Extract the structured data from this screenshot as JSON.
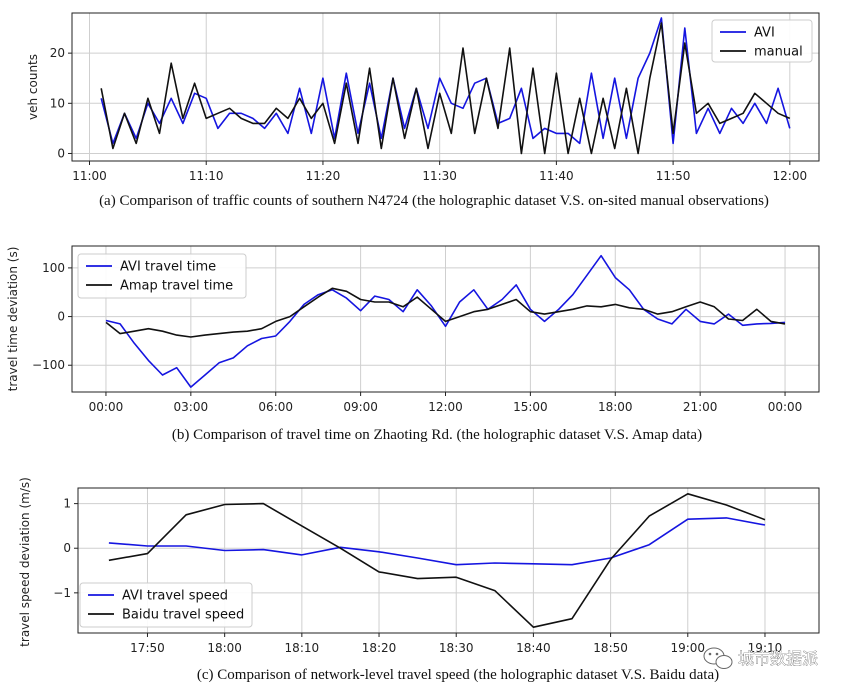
{
  "chart_data": [
    {
      "type": "line",
      "caption": "(a) Comparison of traffic counts of southern N4724 (the holographic dataset V.S. on-sited manual observations)",
      "xlabel": "",
      "ylabel": "veh counts",
      "xticks": [
        "11:00",
        "11:10",
        "11:20",
        "11:30",
        "11:40",
        "11:50",
        "12:00"
      ],
      "xtick_values": [
        0,
        10,
        20,
        30,
        40,
        50,
        60
      ],
      "xlim": [
        -1.5,
        62.5
      ],
      "yticks": [
        0,
        10,
        20
      ],
      "ylim": [
        -1.5,
        28
      ],
      "grid": true,
      "legend_position": "top-right",
      "x": [
        1,
        2,
        3,
        4,
        5,
        6,
        7,
        8,
        9,
        10,
        11,
        12,
        13,
        14,
        15,
        16,
        17,
        18,
        19,
        20,
        21,
        22,
        23,
        24,
        25,
        26,
        27,
        28,
        29,
        30,
        31,
        32,
        33,
        34,
        35,
        36,
        37,
        38,
        39,
        40,
        41,
        42,
        43,
        44,
        45,
        46,
        47,
        48,
        49,
        50,
        51,
        52,
        53,
        54,
        55,
        56,
        57,
        58,
        59,
        60
      ],
      "series": [
        {
          "name": "AVI",
          "color": "#1515e0",
          "values": [
            11,
            2,
            8,
            3,
            10,
            6,
            11,
            6,
            12,
            11,
            5,
            8,
            8,
            7,
            5,
            8,
            4,
            13,
            4,
            15,
            3,
            16,
            4,
            14,
            3,
            15,
            5,
            13,
            5,
            15,
            10,
            9,
            14,
            15,
            6,
            7,
            13,
            3,
            5,
            4,
            4,
            2,
            16,
            3,
            15,
            3,
            15,
            20,
            27,
            2,
            25,
            4,
            9,
            4,
            9,
            6,
            10,
            6,
            13,
            5
          ]
        },
        {
          "name": "manual",
          "color": "#111111",
          "values": [
            13,
            1,
            8,
            2,
            11,
            4,
            18,
            7,
            14,
            7,
            8,
            9,
            7,
            6,
            6,
            9,
            7,
            11,
            7,
            10,
            2,
            14,
            2,
            17,
            1,
            15,
            3,
            13,
            1,
            12,
            4,
            21,
            4,
            15,
            5,
            21,
            0,
            17,
            0,
            16,
            0,
            11,
            0,
            11,
            1,
            13,
            0,
            15,
            26,
            4,
            22,
            8,
            10,
            6,
            7,
            8,
            12,
            10,
            8,
            7
          ]
        }
      ]
    },
    {
      "type": "line",
      "caption": "(b) Comparison of travel time on Zhaoting Rd. (the holographic dataset V.S. Amap data)",
      "xlabel": "",
      "ylabel": "travel time deviation (s)",
      "xticks": [
        "00:00",
        "03:00",
        "06:00",
        "09:00",
        "12:00",
        "15:00",
        "18:00",
        "21:00",
        "00:00"
      ],
      "xtick_values": [
        0,
        3,
        6,
        9,
        12,
        15,
        18,
        21,
        24
      ],
      "xlim": [
        -1.2,
        25.2
      ],
      "yticks": [
        -100,
        0,
        100
      ],
      "ylim": [
        -155,
        145
      ],
      "grid": true,
      "legend_position": "top-left",
      "x": [
        0,
        0.5,
        1,
        1.5,
        2,
        2.5,
        3,
        3.5,
        4,
        4.5,
        5,
        5.5,
        6,
        6.5,
        7,
        7.5,
        8,
        8.5,
        9,
        9.5,
        10,
        10.5,
        11,
        11.5,
        12,
        12.5,
        13,
        13.5,
        14,
        14.5,
        15,
        15.5,
        16,
        16.5,
        17,
        17.5,
        18,
        18.5,
        19,
        19.5,
        20,
        20.5,
        21,
        21.5,
        22,
        22.5,
        23,
        23.5,
        24
      ],
      "series": [
        {
          "name": "AVI travel time",
          "color": "#1515e0",
          "values": [
            -8,
            -15,
            -55,
            -90,
            -120,
            -105,
            -145,
            -120,
            -95,
            -85,
            -60,
            -45,
            -40,
            -10,
            25,
            45,
            55,
            38,
            12,
            42,
            35,
            10,
            55,
            22,
            -20,
            30,
            55,
            15,
            35,
            65,
            15,
            -10,
            15,
            45,
            85,
            125,
            80,
            55,
            15,
            -5,
            -15,
            15,
            -10,
            -15,
            5,
            -18,
            -15,
            -14,
            -12
          ]
        },
        {
          "name": "Amap travel time",
          "color": "#111111",
          "values": [
            -12,
            -35,
            -30,
            -25,
            -30,
            -38,
            -42,
            -38,
            -35,
            -32,
            -30,
            -25,
            -10,
            0,
            20,
            40,
            58,
            52,
            35,
            30,
            30,
            20,
            40,
            15,
            -10,
            0,
            10,
            15,
            25,
            35,
            10,
            5,
            10,
            15,
            22,
            20,
            25,
            18,
            15,
            5,
            10,
            20,
            30,
            20,
            -5,
            -8,
            15,
            -10,
            -15
          ]
        }
      ]
    },
    {
      "type": "line",
      "caption": "(c) Comparison of network-level travel speed (the holographic dataset V.S. Baidu data)",
      "xlabel": "",
      "ylabel": "travel speed deviation (m/s)",
      "xticks": [
        "17:50",
        "18:00",
        "18:10",
        "18:20",
        "18:30",
        "18:40",
        "18:50",
        "19:00",
        "19:10"
      ],
      "xtick_values": [
        5,
        15,
        25,
        35,
        45,
        55,
        65,
        75,
        85
      ],
      "xlim": [
        -4,
        92
      ],
      "yticks": [
        -1,
        0,
        1
      ],
      "ylim": [
        -1.9,
        1.35
      ],
      "grid": true,
      "legend_position": "bottom-left",
      "x": [
        0,
        5,
        10,
        15,
        20,
        25,
        30,
        35,
        40,
        45,
        50,
        55,
        60,
        65,
        70,
        75,
        80,
        85
      ],
      "series": [
        {
          "name": "AVI travel speed",
          "color": "#1515e0",
          "values": [
            0.12,
            0.05,
            0.05,
            -0.05,
            -0.03,
            -0.15,
            0.02,
            -0.08,
            -0.22,
            -0.37,
            -0.33,
            -0.35,
            -0.37,
            -0.22,
            0.08,
            0.65,
            0.68,
            0.52
          ]
        },
        {
          "name": "Baidu travel speed",
          "color": "#111111",
          "values": [
            -0.27,
            -0.12,
            0.75,
            0.98,
            1.0,
            0.5,
            0.0,
            -0.53,
            -0.68,
            -0.65,
            -0.95,
            -1.77,
            -1.58,
            -0.25,
            0.72,
            1.22,
            0.97,
            0.64
          ]
        }
      ]
    }
  ],
  "watermark": {
    "icon": "wechat-icon",
    "text": "城市数据派"
  }
}
